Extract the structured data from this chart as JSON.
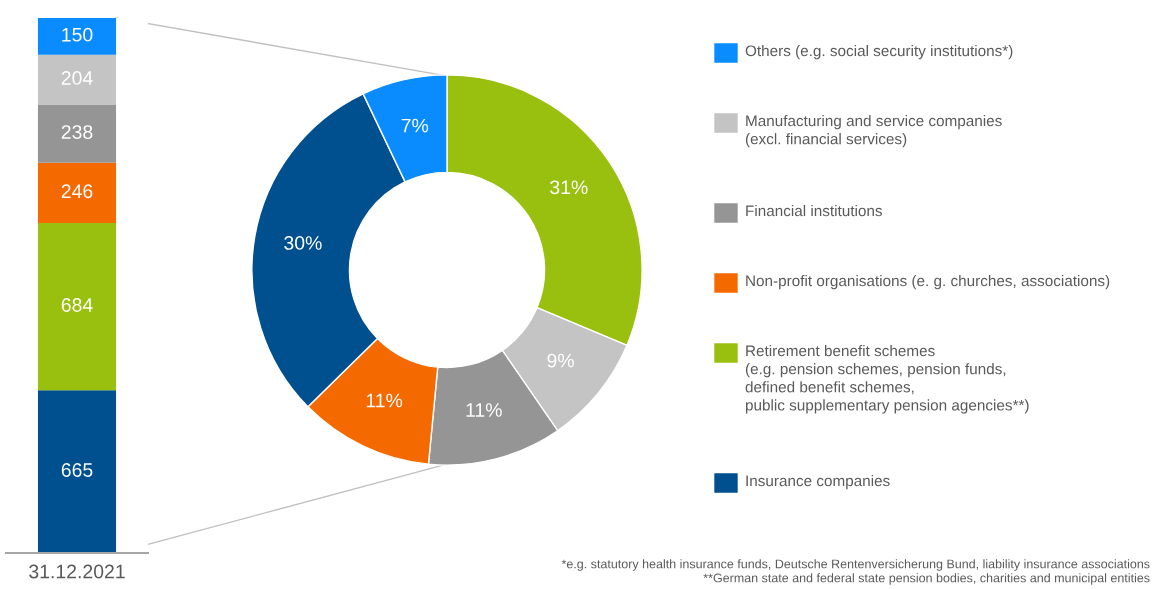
{
  "chart_data": [
    {
      "type": "bar",
      "stacked": true,
      "categories": [
        "31.12.2021"
      ],
      "data_labels": true,
      "legend": "right",
      "series": [
        {
          "name": "Insurance companies",
          "color": "#00508f",
          "values": [
            665
          ]
        },
        {
          "name": "Retirement benefit schemes\n(e.g. pension schemes, pension funds,\ndefined benefit schemes,\npublic supplementary pension agencies**)",
          "color": "#99bf0f",
          "values": [
            684
          ]
        },
        {
          "name": "Non-profit organisations (e. g. churches, associations)",
          "color": "#f56a00",
          "values": [
            246
          ]
        },
        {
          "name": "Financial institutions",
          "color": "#959595",
          "values": [
            238
          ]
        },
        {
          "name": "Manufacturing and service companies\n(excl. financial services)",
          "color": "#c4c4c4",
          "values": [
            204
          ]
        },
        {
          "name": "Others (e.g. social security institutions*)",
          "color": "#0a8cff",
          "values": [
            150
          ]
        }
      ],
      "annotations": [
        "*e.g. statutory health insurance funds, Deutsche Rentenversicherung Bund, liability insurance associations",
        "**German state and federal state pension bodies, charities and municipal entities"
      ]
    },
    {
      "type": "donut",
      "categories": [
        null,
        null,
        null,
        null,
        null,
        null
      ],
      "values": [
        31,
        9,
        11,
        11,
        30,
        7
      ],
      "colors": [
        "#99bf0f",
        "#c4c4c4",
        "#959595",
        "#f56a00",
        "#00508f",
        "#0a8cff"
      ],
      "value_labels": [
        "31%",
        "9%",
        "11%",
        "11%",
        "30%",
        "7%"
      ]
    }
  ]
}
